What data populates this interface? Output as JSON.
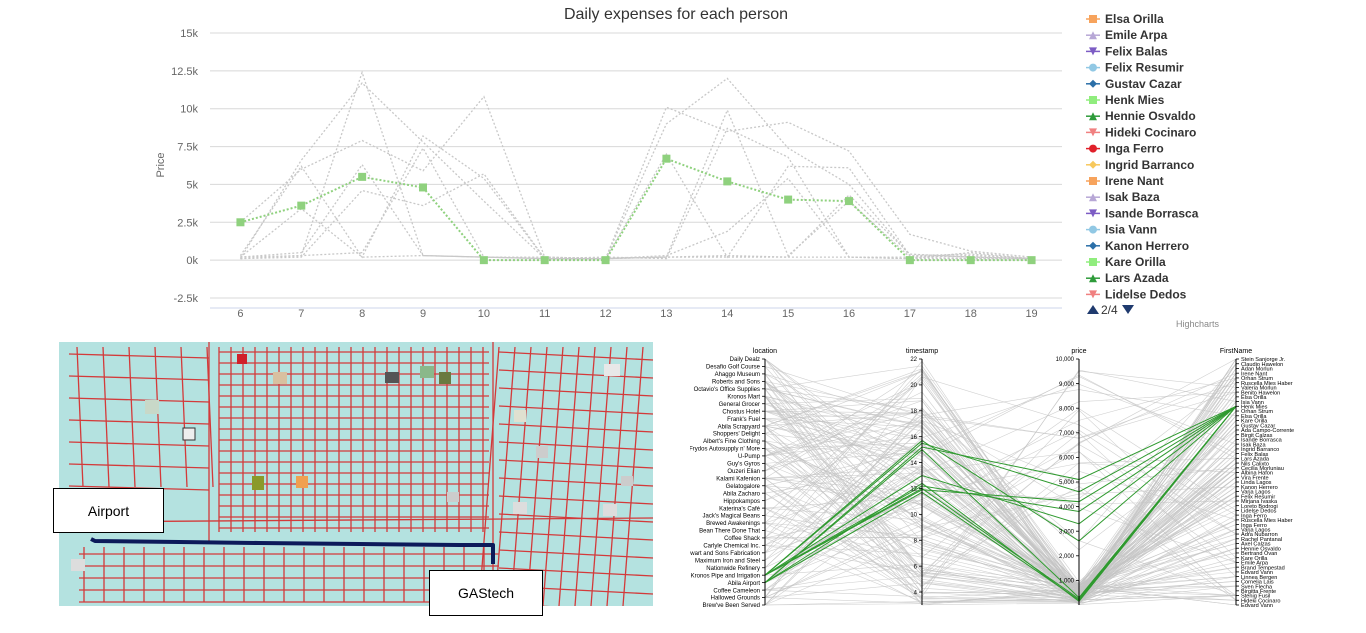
{
  "chart_data": [
    {
      "type": "line",
      "title": "Daily expenses for each person",
      "ylabel": "Price",
      "xlabel": "",
      "x": [
        6,
        7,
        8,
        9,
        10,
        11,
        12,
        13,
        14,
        15,
        16,
        17,
        18,
        19
      ],
      "yticks": [
        "15k",
        "12.5k",
        "10k",
        "7.5k",
        "5k",
        "2.5k",
        "0k",
        "-2.5k"
      ],
      "ylim": [
        -2500,
        15000
      ],
      "grid": true,
      "legend_position": "right",
      "legend_page": "2/4",
      "credit": "Highcharts",
      "highlight_color": "#8fd17e",
      "highlight": {
        "name": "Henk Mies",
        "values": [
          2500,
          3600,
          5500,
          4800,
          0,
          0,
          0,
          6700,
          5200,
          4000,
          3900,
          0,
          0,
          0
        ]
      },
      "background_series": [
        [
          200,
          300,
          12400,
          300,
          200,
          100,
          100,
          200,
          200,
          200,
          200,
          100,
          100,
          100
        ],
        [
          100,
          6600,
          11700,
          7800,
          3900,
          100,
          100,
          10100,
          8500,
          9100,
          7200,
          1700,
          600,
          200
        ],
        [
          2500,
          6000,
          7900,
          5900,
          10800,
          200,
          100,
          9000,
          12000,
          7400,
          5000,
          300,
          400,
          100
        ],
        [
          300,
          6200,
          200,
          8200,
          5400,
          100,
          200,
          100,
          8700,
          6800,
          200,
          200,
          100,
          100
        ],
        [
          200,
          500,
          6300,
          300,
          200,
          100,
          100,
          7000,
          200,
          6200,
          6100,
          300,
          200,
          100
        ],
        [
          100,
          200,
          4600,
          3600,
          5700,
          100,
          100,
          200,
          9900,
          300,
          3900,
          200,
          300,
          100
        ],
        [
          200,
          3400,
          200,
          300,
          200,
          100,
          100,
          300,
          1900,
          5400,
          200,
          100,
          500,
          100
        ],
        [
          100,
          300,
          500,
          7400,
          200,
          200,
          100,
          200,
          300,
          200,
          4300,
          400,
          200,
          100
        ]
      ],
      "legend": [
        {
          "name": "Elsa Orilla",
          "color": "#f7a35c",
          "marker": "square"
        },
        {
          "name": "Emile Arpa",
          "color": "#b7a7d6",
          "marker": "triangle"
        },
        {
          "name": "Felix Balas",
          "color": "#7c5cc4",
          "marker": "triangle-down"
        },
        {
          "name": "Felix Resumir",
          "color": "#91c8e4",
          "marker": "circle"
        },
        {
          "name": "Gustav Cazar",
          "color": "#2b6fa8",
          "marker": "diamond"
        },
        {
          "name": "Henk Mies",
          "color": "#90ed7d",
          "marker": "square"
        },
        {
          "name": "Hennie Osvaldo",
          "color": "#2e9b3a",
          "marker": "triangle"
        },
        {
          "name": "Hideki Cocinaro",
          "color": "#f08080",
          "marker": "triangle-down"
        },
        {
          "name": "Inga Ferro",
          "color": "#e0202a",
          "marker": "circle"
        },
        {
          "name": "Ingrid Barranco",
          "color": "#f7c85c",
          "marker": "diamond"
        },
        {
          "name": "Irene Nant",
          "color": "#f7a35c",
          "marker": "square"
        },
        {
          "name": "Isak Baza",
          "color": "#b7a7d6",
          "marker": "triangle"
        },
        {
          "name": "Isande Borrasca",
          "color": "#7c5cc4",
          "marker": "triangle-down"
        },
        {
          "name": "Isia Vann",
          "color": "#91c8e4",
          "marker": "circle"
        },
        {
          "name": "Kanon Herrero",
          "color": "#2b6fa8",
          "marker": "diamond"
        },
        {
          "name": "Kare Orilla",
          "color": "#90ed7d",
          "marker": "square"
        },
        {
          "name": "Lars Azada",
          "color": "#2e9b3a",
          "marker": "triangle"
        },
        {
          "name": "Lidelse Dedos",
          "color": "#f08080",
          "marker": "triangle-down"
        }
      ]
    },
    {
      "type": "parallel-coordinates",
      "axes": [
        "location",
        "timestamp",
        "price",
        "FirstName"
      ],
      "locations": [
        "Daily Dealz",
        "Desafio Golf Course",
        "Ahaggo Museum",
        "Roberts and Sons",
        "Octavio's Office Supplies",
        "Kronos Mart",
        "General Grocer",
        "Chostus Hotel",
        "Frank's Fuel",
        "Abila Scrapyard",
        "Shoppers' Delight",
        "Albert's Fine Clothing",
        "Frydos Autosupply n' More",
        "U-Pump",
        "Guy's Gyros",
        "Ouzeri Elian",
        "Kalami Kafenion",
        "Gelatogalore",
        "Abila Zacharo",
        "Hippokampos",
        "Katerina's Café",
        "Jack's Magical Beans",
        "Brewed Awakenings",
        "Bean There Done That",
        "Coffee Shack",
        "Carlyle Chemical Inc.",
        "Stewart and Sons Fabrication",
        "Maximum Iron and Steel",
        "Nationwide Refinery",
        "Kronos Pipe and Irrigation",
        "Abila Airport",
        "Coffee Cameleon",
        "Hallowed Grounds",
        "Brew've Been Served"
      ],
      "timestamp_ticks": [
        "22",
        "20",
        "18",
        "16",
        "14",
        "12",
        "10",
        "8",
        "6",
        "4"
      ],
      "timestamp_range": [
        3,
        22
      ],
      "price_ticks": [
        "10,000",
        "9,000",
        "8,000",
        "7,000",
        "6,000",
        "5,000",
        "4,000",
        "3,000",
        "2,000",
        "1,000"
      ],
      "price_range": [
        0,
        10000
      ],
      "first_names": [
        "Stein Sanjorge Jr.",
        "Claudio Hawelon",
        "Adan Morlun",
        "Irene Nant",
        "Orhan Strum",
        "Ruscella Mies Haber",
        "Valeria Morlun",
        "Benito Hawelon",
        "Elsa Orilla",
        "Isia Vann",
        "Henk Mies",
        "Orhan Strum",
        "Elsa Orilla",
        "Kare Orilla",
        "Gustav Cazar",
        "Ada Campo-Corrente",
        "Birgit Calzas",
        "Isande Borrasca",
        "Isak Baza",
        "Ingrid Barranco",
        "Felix Balas",
        "Lars Azada",
        "Nils Calixto",
        "Cecilia Morluniau",
        "Albina Hafon",
        "Vira Frente",
        "Linda Lagos",
        "Kanon Herrero",
        "Varja Lagos",
        "Felix Resumir",
        "Mirjana Ivaska",
        "Loreto Bodrogi",
        "Lidelse Dedos",
        "Inga Ferro",
        "Ruscella Mies Haber",
        "Inga Ferro",
        "Varja Lagos",
        "Adra Nubarron",
        "Rachel Pantanal",
        "Axel Calzas",
        "Hennie Osvaldo",
        "Bertrand Ovan",
        "Kare Orilla",
        "Emile Arpa",
        "Brand Tempestad",
        "Edvard Vann",
        "Linnea Bergen",
        "Cornelia Lais",
        "Sven Flecha",
        "Birgitta Frente",
        "Stenig Fusil",
        "Hideki Cocinaro",
        "Edvard Vann"
      ],
      "highlight_color": "#2f9a2f"
    }
  ],
  "map": {
    "labels": {
      "airport": "Airport",
      "gastech": "GAStech"
    }
  }
}
